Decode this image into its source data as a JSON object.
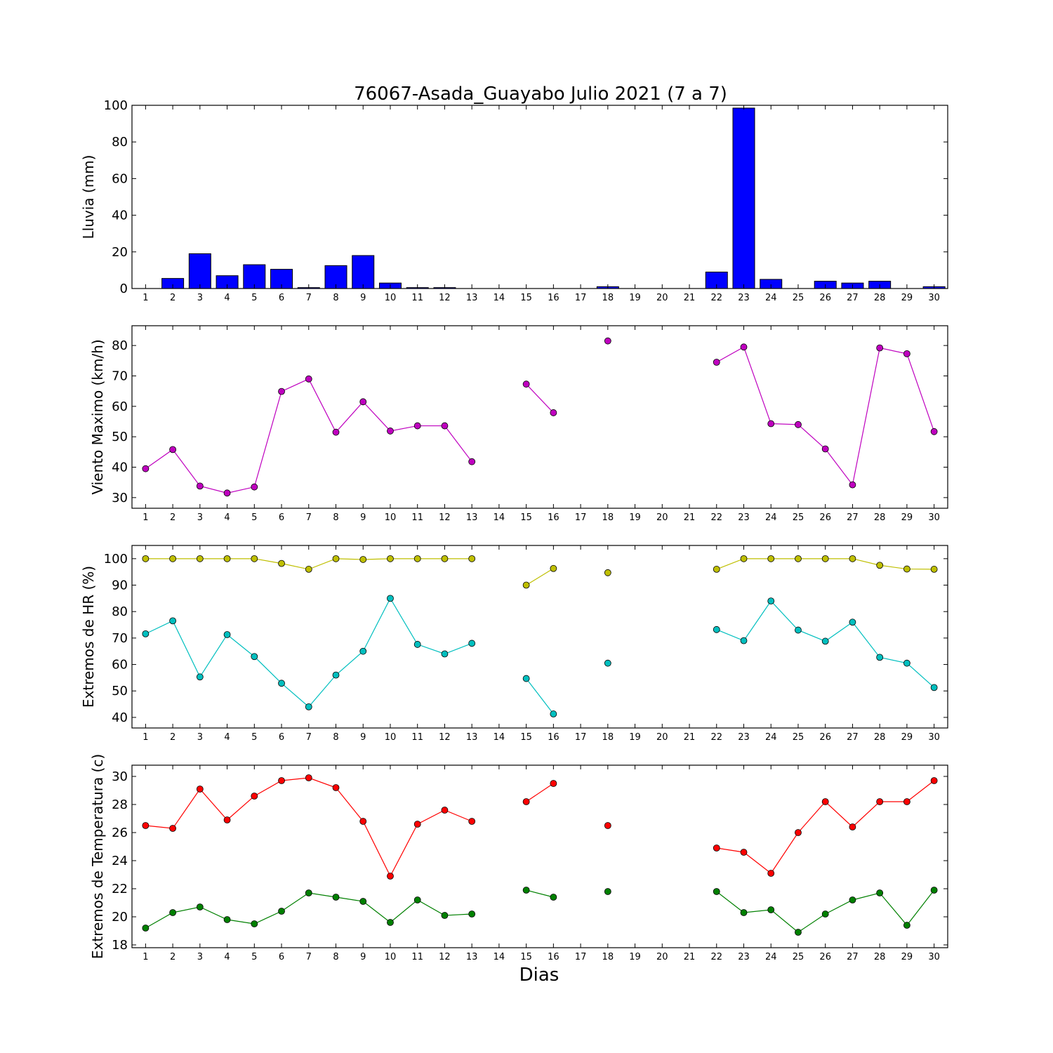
{
  "title": "76067-Asada_Guayabo Julio 2021  (7 a 7)",
  "xlabel": "Dias",
  "days": [
    1,
    2,
    3,
    4,
    5,
    6,
    7,
    8,
    9,
    10,
    11,
    12,
    13,
    14,
    15,
    16,
    17,
    18,
    19,
    20,
    21,
    22,
    23,
    24,
    25,
    26,
    27,
    28,
    29,
    30
  ],
  "chart_data": [
    {
      "type": "bar",
      "ylabel": "Lluvia (mm)",
      "ylim": [
        0,
        100
      ],
      "yticks": [
        0,
        20,
        40,
        60,
        80,
        100
      ],
      "series": [
        {
          "color": "#0000ff",
          "values": [
            0,
            5.5,
            19,
            7,
            13,
            10.5,
            0.5,
            12.5,
            18,
            3,
            0.5,
            0.5,
            0,
            0,
            0,
            0,
            0,
            1,
            0,
            0,
            0,
            9,
            98.5,
            5,
            0,
            4,
            3,
            4,
            0,
            1
          ]
        }
      ]
    },
    {
      "type": "line",
      "ylabel": "Viento Maximo (km/h)",
      "ylim": [
        26.5,
        86.5
      ],
      "yticks": [
        30,
        40,
        50,
        60,
        70,
        80
      ],
      "series": [
        {
          "color": "#bf00bf",
          "values": [
            39.5,
            45.8,
            33.8,
            31.5,
            33.5,
            64.9,
            69,
            51.5,
            61.5,
            51.9,
            53.6,
            53.6,
            41.8,
            null,
            67.3,
            57.9,
            null,
            81.5,
            null,
            null,
            null,
            74.5,
            79.5,
            54.3,
            54,
            46,
            34.2,
            79.2,
            77.3,
            51.7
          ]
        }
      ]
    },
    {
      "type": "line",
      "ylabel": "Extremos de HR (%)",
      "ylim": [
        36,
        105
      ],
      "yticks": [
        40,
        50,
        60,
        70,
        80,
        90,
        100
      ],
      "series": [
        {
          "color": "#bfbf00",
          "values": [
            100,
            100,
            100,
            100,
            100,
            98.2,
            96,
            100,
            99.7,
            100,
            100,
            100,
            100,
            null,
            90,
            96.3,
            null,
            94.7,
            null,
            null,
            null,
            96,
            100,
            100,
            100,
            100,
            100,
            97.5,
            96.1,
            96
          ]
        },
        {
          "color": "#00bfbf",
          "values": [
            71.6,
            76.5,
            55.3,
            71.3,
            63,
            52.9,
            44,
            56,
            65,
            85,
            67.6,
            64,
            68,
            null,
            54.7,
            41.3,
            null,
            60.5,
            null,
            null,
            null,
            73.2,
            69,
            84,
            73,
            68.8,
            76,
            62.7,
            60.5,
            51.3
          ]
        }
      ]
    },
    {
      "type": "line",
      "ylabel": "Extremos de Temperatura (c)",
      "ylim": [
        17.8,
        30.8
      ],
      "yticks": [
        18,
        20,
        22,
        24,
        26,
        28,
        30
      ],
      "series": [
        {
          "color": "#ff0000",
          "values": [
            26.5,
            26.3,
            29.1,
            26.9,
            28.6,
            29.7,
            29.9,
            29.2,
            26.8,
            22.9,
            26.6,
            27.6,
            26.8,
            null,
            28.2,
            29.5,
            null,
            26.5,
            null,
            null,
            null,
            24.9,
            24.6,
            23.1,
            26,
            28.2,
            26.4,
            28.2,
            28.2,
            29.7
          ]
        },
        {
          "color": "#008000",
          "values": [
            19.2,
            20.3,
            20.7,
            19.8,
            19.5,
            20.4,
            21.7,
            21.4,
            21.1,
            19.6,
            21.2,
            20.1,
            20.2,
            null,
            21.9,
            21.4,
            null,
            21.8,
            null,
            null,
            null,
            21.8,
            20.3,
            20.5,
            18.9,
            20.2,
            21.2,
            21.7,
            19.4,
            21.9
          ]
        }
      ]
    }
  ]
}
